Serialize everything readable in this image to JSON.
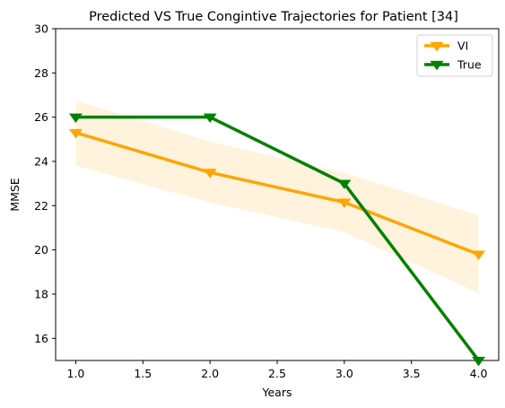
{
  "chart_data": {
    "type": "line",
    "title": "Predicted VS True Congintive Trajectories for Patient [34]",
    "xlabel": "Years",
    "ylabel": "MMSE",
    "xlim": [
      0.85,
      4.15
    ],
    "ylim": [
      15,
      30
    ],
    "xticks": [
      "1.0",
      "1.5",
      "2.0",
      "2.5",
      "3.0",
      "3.5",
      "4.0"
    ],
    "xtick_values": [
      1.0,
      1.5,
      2.0,
      2.5,
      3.0,
      3.5,
      4.0
    ],
    "yticks": [
      "16",
      "18",
      "20",
      "22",
      "24",
      "26",
      "28",
      "30"
    ],
    "ytick_values": [
      16,
      18,
      20,
      22,
      24,
      26,
      28,
      30
    ],
    "grid": false,
    "legend_position": "top-right",
    "series": [
      {
        "name": "VI",
        "color": "#FFA500",
        "marker": "triangle-down",
        "x": [
          1,
          2,
          3,
          4
        ],
        "y": [
          25.3,
          23.5,
          22.15,
          19.8
        ],
        "band_lower": [
          23.8,
          22.15,
          20.8,
          18.05
        ],
        "band_upper": [
          26.75,
          24.9,
          23.5,
          21.55
        ],
        "band_color": "#FFF3DE"
      },
      {
        "name": "True",
        "color": "#008000",
        "marker": "triangle-down",
        "x": [
          1,
          2,
          3,
          4
        ],
        "y": [
          26,
          26,
          23,
          15
        ]
      }
    ]
  }
}
